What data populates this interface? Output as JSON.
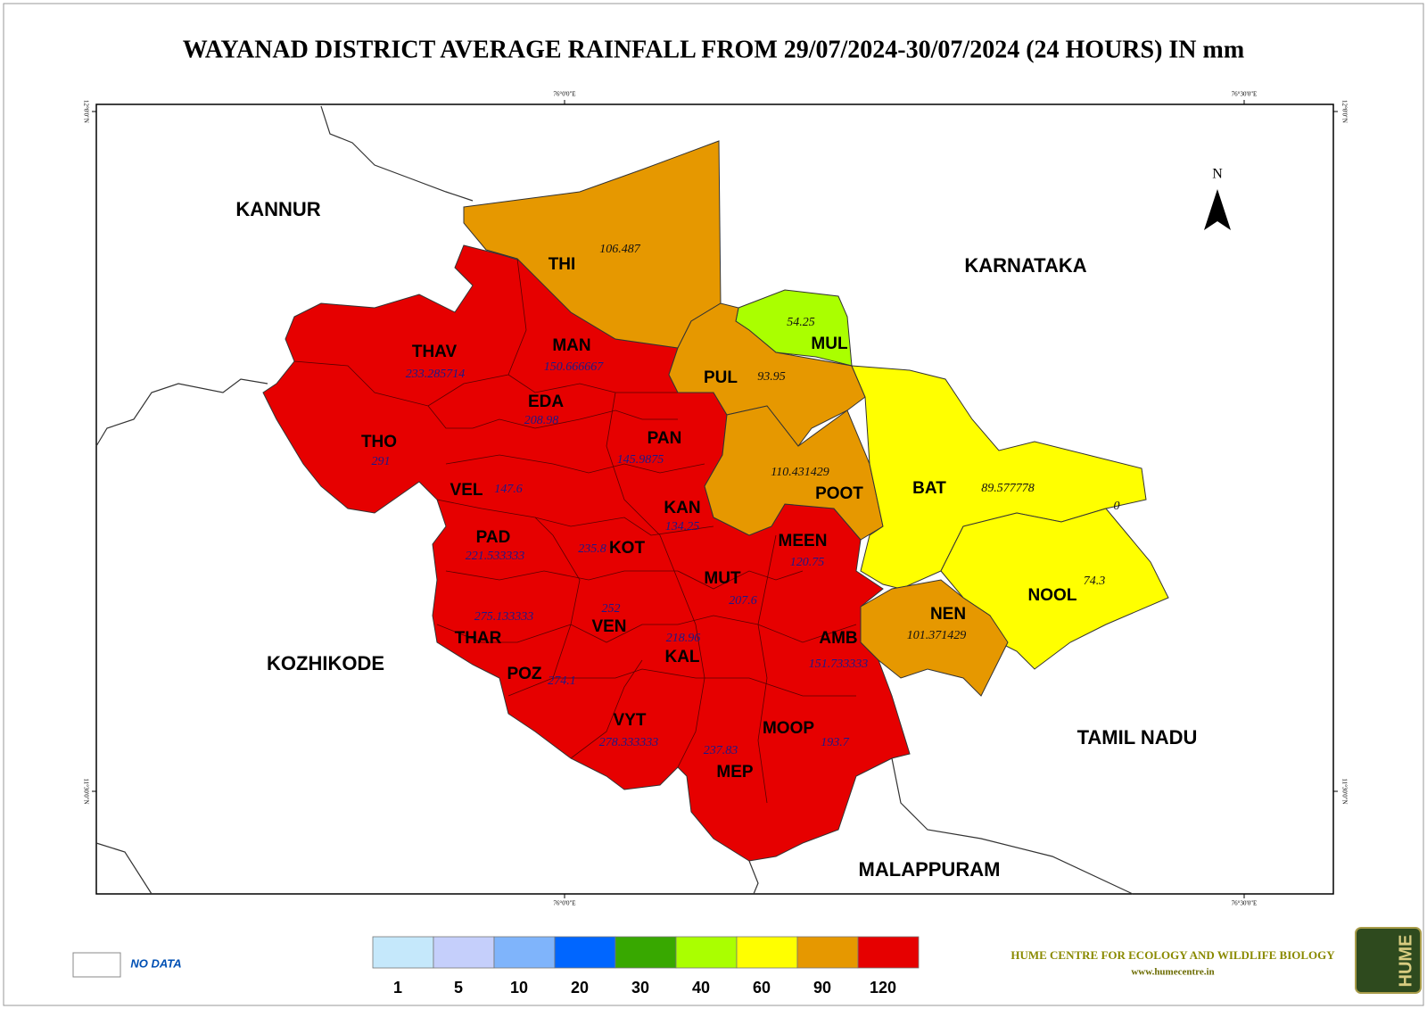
{
  "title": "WAYANAD DISTRICT AVERAGE RAINFALL FROM 29/07/2024-30/07/2024 (24 HOURS) IN mm",
  "graticule": {
    "longitude": [
      "76°0'0\"E",
      "76°30'0\"E"
    ],
    "latitude": [
      "12°0'0\"N",
      "11°30'0\"N"
    ]
  },
  "north": "N",
  "neighbors": [
    "KANNUR",
    "KARNATAKA",
    "KOZHIKODE",
    "TAMIL NADU",
    "MALAPPURAM"
  ],
  "regions": [
    {
      "label": "THI",
      "value": 106.487
    },
    {
      "label": "MUL",
      "value": 54.25
    },
    {
      "label": "THAV",
      "value": 233.285714
    },
    {
      "label": "MAN",
      "value": 150.666667
    },
    {
      "label": "PUL",
      "value": 93.95
    },
    {
      "label": "EDA",
      "value": 208.98
    },
    {
      "label": "THO",
      "value": 291
    },
    {
      "label": "PAN",
      "value": 145.9875
    },
    {
      "label": "BAT",
      "value": 89.577778
    },
    {
      "label": "VEL",
      "value": 147.6
    },
    {
      "label": "KAN",
      "value": 134.25
    },
    {
      "label": "POOT",
      "value": 110.431429
    },
    {
      "label": "PAD",
      "value": 221.533333
    },
    {
      "label": "KOT",
      "value": 235.8
    },
    {
      "label": "MEEN",
      "value": 120.75
    },
    {
      "label": "MUT",
      "value": 207.6
    },
    {
      "label": "NOOL",
      "value": 74.3
    },
    {
      "label": "NEN",
      "value": 101.371429
    },
    {
      "label": "VEN",
      "value": 252
    },
    {
      "label": "THAR",
      "value": 275.133333
    },
    {
      "label": "AMB",
      "value": 151.733333
    },
    {
      "label": "KAL",
      "value": 218.96
    },
    {
      "label": "POZ",
      "value": 274.1
    },
    {
      "label": "VYT",
      "value": 278.333333
    },
    {
      "label": "MOOP",
      "value": 193.7
    },
    {
      "label": "MEP",
      "value": 237.83
    }
  ],
  "small_unit_value": 0,
  "legend": {
    "no_data": "NO DATA",
    "breaks": [
      1,
      5,
      10,
      20,
      30,
      40,
      60,
      90,
      120
    ],
    "colors": [
      "#c5e8fb",
      "#c5cffb",
      "#7fb4fb",
      "#0066ff",
      "#38a800",
      "#aaff00",
      "#ffff00",
      "#e69800",
      "#e60000"
    ]
  },
  "credit": {
    "name": "HUME CENTRE FOR ECOLOGY AND WILDLIFE BIOLOGY",
    "url": "www.humecentre.in"
  },
  "logo": "HUME"
}
